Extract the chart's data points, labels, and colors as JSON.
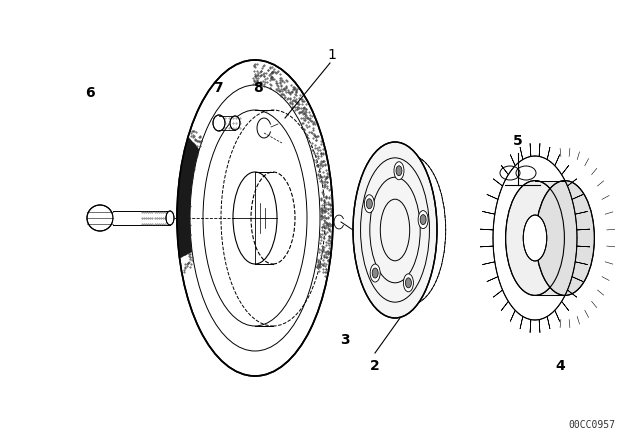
{
  "bg_color": "#ffffff",
  "line_color": "#000000",
  "fig_width": 6.4,
  "fig_height": 4.48,
  "dpi": 100,
  "watermark": "00CC0957"
}
